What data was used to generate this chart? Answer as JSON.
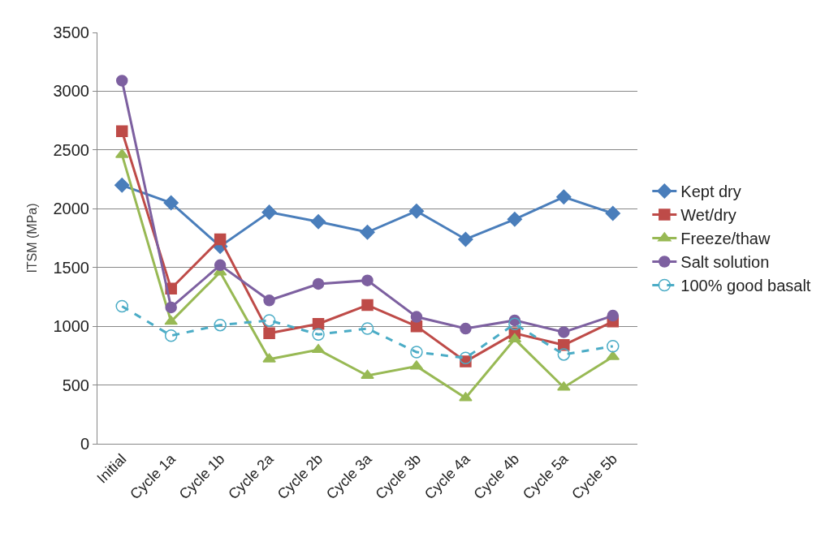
{
  "chart_data": {
    "type": "line",
    "ylabel": "ITSM (MPa)",
    "categories": [
      "Initial",
      "Cycle 1a",
      "Cycle 1b",
      "Cycle 2a",
      "Cycle 2b",
      "Cycle 3a",
      "Cycle 3b",
      "Cycle 4a",
      "Cycle 4b",
      "Cycle 5a",
      "Cycle 5b"
    ],
    "ylim": [
      0,
      3500
    ],
    "yticks": [
      0,
      500,
      1000,
      1500,
      2000,
      2500,
      3000,
      3500
    ],
    "grid": "y",
    "legend": "right",
    "series": [
      {
        "name": "Kept dry",
        "color": "#4a7ebb",
        "marker": "diamond",
        "line_style": "solid",
        "values": [
          2200,
          2050,
          1680,
          1970,
          1890,
          1800,
          1980,
          1740,
          1910,
          2100,
          1960
        ]
      },
      {
        "name": "Wet/dry",
        "color": "#be4b48",
        "marker": "square",
        "line_style": "solid",
        "values": [
          2660,
          1320,
          1740,
          940,
          1020,
          1180,
          1000,
          700,
          940,
          840,
          1040
        ]
      },
      {
        "name": "Freeze/thaw",
        "color": "#98b954",
        "marker": "triangle",
        "line_style": "solid",
        "values": [
          2460,
          1040,
          1460,
          720,
          800,
          580,
          660,
          390,
          890,
          480,
          740
        ]
      },
      {
        "name": "Salt solution",
        "color": "#7d60a0",
        "marker": "circle",
        "line_style": "solid",
        "values": [
          3090,
          1160,
          1520,
          1220,
          1360,
          1390,
          1080,
          980,
          1050,
          950,
          1090
        ]
      },
      {
        "name": "100% good basalt",
        "color": "#4bacc6",
        "marker": "circle-open",
        "line_style": "dashed",
        "values": [
          1170,
          920,
          1010,
          1050,
          930,
          980,
          780,
          730,
          1020,
          760,
          830
        ]
      }
    ]
  }
}
